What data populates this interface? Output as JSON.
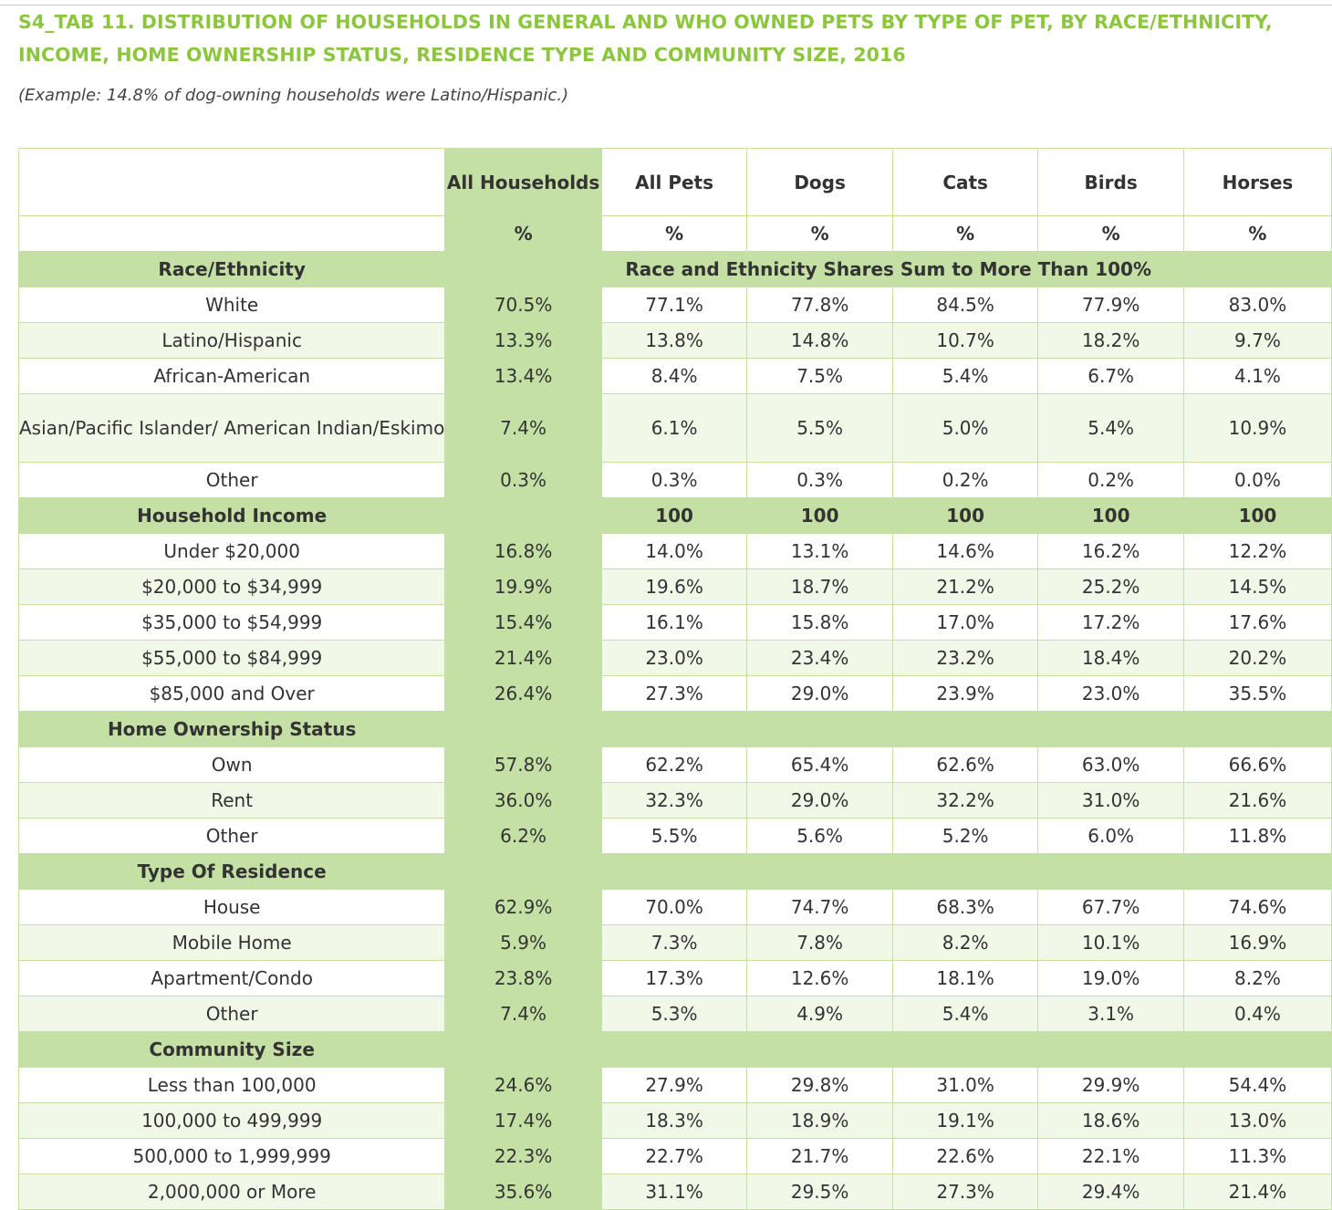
{
  "title": "S4_TAB 11. DISTRIBUTION OF HOUSEHOLDS IN GENERAL AND WHO OWNED PETS BY TYPE OF PET, BY RACE/ETHNICITY, INCOME, HOME OWNERSHIP STATUS, RESIDENCE TYPE AND COMMUNITY SIZE, 2016",
  "subtitle": "(Example: 14.8% of dog-owning households were Latino/Hispanic.)",
  "columns": [
    "All Households",
    "All Pets",
    "Dogs",
    "Cats",
    "Birds",
    "Horses"
  ],
  "unit": "%",
  "colors": {
    "accent": "#8cc63f",
    "fill": "#c5e0a5",
    "alt_row": "#f1f8e8"
  },
  "sections": [
    {
      "label": "Race/Ethnicity",
      "note": "Race and Ethnicity Shares Sum to More Than 100%",
      "totals": null,
      "rows": [
        {
          "label": "White",
          "values": [
            "70.5%",
            "77.1%",
            "77.8%",
            "84.5%",
            "77.9%",
            "83.0%"
          ]
        },
        {
          "label": "Latino/Hispanic",
          "values": [
            "13.3%",
            "13.8%",
            "14.8%",
            "10.7%",
            "18.2%",
            "9.7%"
          ]
        },
        {
          "label": "African-American",
          "values": [
            "13.4%",
            "8.4%",
            "7.5%",
            "5.4%",
            "6.7%",
            "4.1%"
          ]
        },
        {
          "label": "Asian/Pacific Islander/ American Indian/Eskimo",
          "values": [
            "7.4%",
            "6.1%",
            "5.5%",
            "5.0%",
            "5.4%",
            "10.9%"
          ]
        },
        {
          "label": "Other",
          "values": [
            "0.3%",
            "0.3%",
            "0.3%",
            "0.2%",
            "0.2%",
            "0.0%"
          ]
        }
      ]
    },
    {
      "label": "Household Income",
      "note": null,
      "totals": [
        "",
        "100",
        "100",
        "100",
        "100",
        "100"
      ],
      "rows": [
        {
          "label": "Under $20,000",
          "values": [
            "16.8%",
            "14.0%",
            "13.1%",
            "14.6%",
            "16.2%",
            "12.2%"
          ]
        },
        {
          "label": "$20,000 to $34,999",
          "values": [
            "19.9%",
            "19.6%",
            "18.7%",
            "21.2%",
            "25.2%",
            "14.5%"
          ]
        },
        {
          "label": "$35,000 to $54,999",
          "values": [
            "15.4%",
            "16.1%",
            "15.8%",
            "17.0%",
            "17.2%",
            "17.6%"
          ]
        },
        {
          "label": "$55,000 to $84,999",
          "values": [
            "21.4%",
            "23.0%",
            "23.4%",
            "23.2%",
            "18.4%",
            "20.2%"
          ]
        },
        {
          "label": "$85,000 and Over",
          "values": [
            "26.4%",
            "27.3%",
            "29.0%",
            "23.9%",
            "23.0%",
            "35.5%"
          ]
        }
      ]
    },
    {
      "label": "Home Ownership Status",
      "note": null,
      "totals": null,
      "rows": [
        {
          "label": "Own",
          "values": [
            "57.8%",
            "62.2%",
            "65.4%",
            "62.6%",
            "63.0%",
            "66.6%"
          ]
        },
        {
          "label": "Rent",
          "values": [
            "36.0%",
            "32.3%",
            "29.0%",
            "32.2%",
            "31.0%",
            "21.6%"
          ]
        },
        {
          "label": "Other",
          "values": [
            "6.2%",
            "5.5%",
            "5.6%",
            "5.2%",
            "6.0%",
            "11.8%"
          ]
        }
      ]
    },
    {
      "label": "Type Of Residence",
      "note": null,
      "totals": null,
      "rows": [
        {
          "label": "House",
          "values": [
            "62.9%",
            "70.0%",
            "74.7%",
            "68.3%",
            "67.7%",
            "74.6%"
          ]
        },
        {
          "label": "Mobile Home",
          "values": [
            "5.9%",
            "7.3%",
            "7.8%",
            "8.2%",
            "10.1%",
            "16.9%"
          ]
        },
        {
          "label": "Apartment/Condo",
          "values": [
            "23.8%",
            "17.3%",
            "12.6%",
            "18.1%",
            "19.0%",
            "8.2%"
          ]
        },
        {
          "label": "Other",
          "values": [
            "7.4%",
            "5.3%",
            "4.9%",
            "5.4%",
            "3.1%",
            "0.4%"
          ]
        }
      ]
    },
    {
      "label": "Community Size",
      "note": null,
      "totals": null,
      "rows": [
        {
          "label": "Less than 100,000",
          "values": [
            "24.6%",
            "27.9%",
            "29.8%",
            "31.0%",
            "29.9%",
            "54.4%"
          ]
        },
        {
          "label": "100,000 to 499,999",
          "values": [
            "17.4%",
            "18.3%",
            "18.9%",
            "19.1%",
            "18.6%",
            "13.0%"
          ]
        },
        {
          "label": "500,000 to 1,999,999",
          "values": [
            "22.3%",
            "22.7%",
            "21.7%",
            "22.6%",
            "22.1%",
            "11.3%"
          ]
        },
        {
          "label": "2,000,000 or More",
          "values": [
            "35.6%",
            "31.1%",
            "29.5%",
            "27.3%",
            "29.4%",
            "21.4%"
          ]
        }
      ]
    }
  ]
}
